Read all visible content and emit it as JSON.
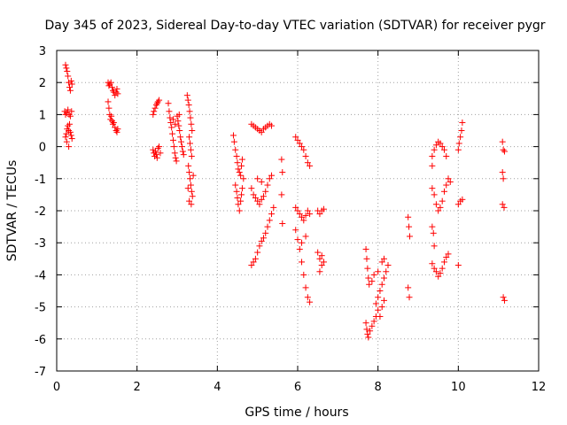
{
  "chart_data": {
    "type": "scatter",
    "title": "Day 345 of 2023, Sidereal Day-to-day VTEC variation (SDTVAR) for receiver pygr",
    "xlabel": "GPS time / hours",
    "ylabel": "SDTVAR / TECUs",
    "xlim": [
      0,
      12
    ],
    "ylim": [
      -7,
      3
    ],
    "xticks": [
      0,
      2,
      4,
      6,
      8,
      10,
      12
    ],
    "yticks": [
      -7,
      -6,
      -5,
      -4,
      -3,
      -2,
      -1,
      0,
      1,
      2,
      3
    ],
    "x_tick_labels": [
      "0",
      "2",
      "4",
      "6",
      "8",
      "10",
      "12"
    ],
    "y_tick_labels": [
      "-7",
      "-6",
      "-5",
      "-4",
      "-3",
      "-2",
      "-1",
      "0",
      "1",
      "2",
      "3"
    ],
    "grid": true,
    "marker": "+",
    "color": "#ff0000",
    "series": [
      {
        "name": "SDTVAR",
        "points": [
          [
            0.22,
            2.55
          ],
          [
            0.24,
            2.45
          ],
          [
            0.26,
            2.35
          ],
          [
            0.28,
            2.2
          ],
          [
            0.3,
            2.0
          ],
          [
            0.32,
            1.85
          ],
          [
            0.34,
            1.75
          ],
          [
            0.36,
            2.05
          ],
          [
            0.38,
            1.95
          ],
          [
            0.2,
            1.1
          ],
          [
            0.22,
            1.0
          ],
          [
            0.25,
            1.05
          ],
          [
            0.28,
            1.15
          ],
          [
            0.31,
            1.0
          ],
          [
            0.34,
            0.95
          ],
          [
            0.37,
            1.1
          ],
          [
            0.22,
            0.3
          ],
          [
            0.24,
            0.4
          ],
          [
            0.26,
            0.55
          ],
          [
            0.28,
            0.65
          ],
          [
            0.3,
            0.5
          ],
          [
            0.32,
            0.7
          ],
          [
            0.34,
            0.45
          ],
          [
            0.36,
            0.35
          ],
          [
            0.38,
            0.25
          ],
          [
            0.25,
            0.15
          ],
          [
            0.3,
            0.0
          ],
          [
            1.28,
            2.0
          ],
          [
            1.3,
            1.9
          ],
          [
            1.32,
            1.95
          ],
          [
            1.35,
            2.0
          ],
          [
            1.38,
            1.85
          ],
          [
            1.4,
            1.75
          ],
          [
            1.42,
            1.7
          ],
          [
            1.45,
            1.6
          ],
          [
            1.48,
            1.7
          ],
          [
            1.5,
            1.8
          ],
          [
            1.52,
            1.65
          ],
          [
            1.28,
            1.4
          ],
          [
            1.3,
            1.2
          ],
          [
            1.32,
            1.0
          ],
          [
            1.34,
            0.85
          ],
          [
            1.36,
            0.95
          ],
          [
            1.38,
            0.8
          ],
          [
            1.4,
            0.7
          ],
          [
            1.42,
            0.75
          ],
          [
            1.45,
            0.6
          ],
          [
            1.48,
            0.5
          ],
          [
            1.5,
            0.45
          ],
          [
            1.52,
            0.55
          ],
          [
            2.4,
            1.0
          ],
          [
            2.42,
            1.1
          ],
          [
            2.45,
            1.2
          ],
          [
            2.48,
            1.3
          ],
          [
            2.5,
            1.35
          ],
          [
            2.52,
            1.4
          ],
          [
            2.55,
            1.45
          ],
          [
            2.4,
            -0.1
          ],
          [
            2.42,
            -0.2
          ],
          [
            2.44,
            -0.3
          ],
          [
            2.46,
            -0.15
          ],
          [
            2.48,
            -0.25
          ],
          [
            2.5,
            -0.35
          ],
          [
            2.52,
            -0.05
          ],
          [
            2.55,
            0.0
          ],
          [
            2.58,
            -0.2
          ],
          [
            2.78,
            1.35
          ],
          [
            2.8,
            1.1
          ],
          [
            2.82,
            0.9
          ],
          [
            2.84,
            0.75
          ],
          [
            2.86,
            0.6
          ],
          [
            2.88,
            0.4
          ],
          [
            2.9,
            0.2
          ],
          [
            2.92,
            0.0
          ],
          [
            2.94,
            -0.2
          ],
          [
            2.96,
            -0.35
          ],
          [
            2.98,
            -0.45
          ],
          [
            3.0,
            0.95
          ],
          [
            3.02,
            0.8
          ],
          [
            3.04,
            0.65
          ],
          [
            3.06,
            0.5
          ],
          [
            3.08,
            0.3
          ],
          [
            3.1,
            0.15
          ],
          [
            3.12,
            0.0
          ],
          [
            3.14,
            -0.15
          ],
          [
            3.16,
            -0.25
          ],
          [
            2.9,
            0.85
          ],
          [
            2.95,
            0.7
          ],
          [
            3.05,
            1.0
          ],
          [
            3.25,
            1.6
          ],
          [
            3.27,
            1.45
          ],
          [
            3.29,
            1.3
          ],
          [
            3.31,
            1.1
          ],
          [
            3.33,
            0.9
          ],
          [
            3.35,
            0.7
          ],
          [
            3.37,
            0.5
          ],
          [
            3.3,
            0.3
          ],
          [
            3.32,
            0.1
          ],
          [
            3.34,
            -0.1
          ],
          [
            3.36,
            -0.3
          ],
          [
            3.28,
            -0.6
          ],
          [
            3.3,
            -0.8
          ],
          [
            3.32,
            -1.0
          ],
          [
            3.34,
            -1.2
          ],
          [
            3.36,
            -1.4
          ],
          [
            3.38,
            -1.55
          ],
          [
            3.3,
            -1.7
          ],
          [
            3.35,
            -1.8
          ],
          [
            3.27,
            -1.3
          ],
          [
            3.4,
            -0.9
          ],
          [
            4.4,
            0.35
          ],
          [
            4.42,
            0.15
          ],
          [
            4.45,
            -0.1
          ],
          [
            4.48,
            -0.3
          ],
          [
            4.5,
            -0.5
          ],
          [
            4.52,
            -0.7
          ],
          [
            4.55,
            -0.8
          ],
          [
            4.58,
            -0.9
          ],
          [
            4.6,
            -0.6
          ],
          [
            4.62,
            -0.4
          ],
          [
            4.65,
            -1.0
          ],
          [
            4.45,
            -1.2
          ],
          [
            4.48,
            -1.4
          ],
          [
            4.5,
            -1.6
          ],
          [
            4.52,
            -1.8
          ],
          [
            4.55,
            -2.0
          ],
          [
            4.58,
            -1.7
          ],
          [
            4.6,
            -1.5
          ],
          [
            4.62,
            -1.3
          ],
          [
            4.85,
            0.7
          ],
          [
            4.9,
            0.65
          ],
          [
            4.95,
            0.6
          ],
          [
            5.0,
            0.55
          ],
          [
            5.05,
            0.5
          ],
          [
            5.1,
            0.45
          ],
          [
            5.15,
            0.55
          ],
          [
            5.2,
            0.6
          ],
          [
            5.25,
            0.65
          ],
          [
            5.3,
            0.7
          ],
          [
            5.35,
            0.65
          ],
          [
            4.85,
            -1.3
          ],
          [
            4.9,
            -1.5
          ],
          [
            4.95,
            -1.6
          ],
          [
            5.0,
            -1.7
          ],
          [
            5.05,
            -1.8
          ],
          [
            5.1,
            -1.65
          ],
          [
            5.15,
            -1.55
          ],
          [
            5.2,
            -1.4
          ],
          [
            5.25,
            -1.2
          ],
          [
            5.3,
            -1.0
          ],
          [
            5.35,
            -0.9
          ],
          [
            5.0,
            -1.0
          ],
          [
            5.1,
            -1.1
          ],
          [
            4.85,
            -3.7
          ],
          [
            4.9,
            -3.6
          ],
          [
            4.95,
            -3.5
          ],
          [
            5.0,
            -3.3
          ],
          [
            5.05,
            -3.1
          ],
          [
            5.1,
            -2.95
          ],
          [
            5.15,
            -2.85
          ],
          [
            5.2,
            -2.7
          ],
          [
            5.25,
            -2.5
          ],
          [
            5.3,
            -2.3
          ],
          [
            5.35,
            -2.1
          ],
          [
            5.4,
            -1.9
          ],
          [
            5.6,
            -0.4
          ],
          [
            5.62,
            -0.8
          ],
          [
            5.6,
            -1.5
          ],
          [
            5.62,
            -2.4
          ],
          [
            5.95,
            0.3
          ],
          [
            6.0,
            0.2
          ],
          [
            6.05,
            0.1
          ],
          [
            6.1,
            0.0
          ],
          [
            6.15,
            -0.1
          ],
          [
            6.2,
            -0.3
          ],
          [
            6.25,
            -0.5
          ],
          [
            6.3,
            -0.6
          ],
          [
            5.95,
            -1.9
          ],
          [
            6.0,
            -2.0
          ],
          [
            6.05,
            -2.1
          ],
          [
            6.1,
            -2.2
          ],
          [
            6.15,
            -2.3
          ],
          [
            6.2,
            -2.15
          ],
          [
            6.25,
            -2.0
          ],
          [
            6.3,
            -2.1
          ],
          [
            5.95,
            -2.6
          ],
          [
            6.0,
            -2.9
          ],
          [
            6.05,
            -3.2
          ],
          [
            6.1,
            -3.6
          ],
          [
            6.15,
            -4.0
          ],
          [
            6.2,
            -4.4
          ],
          [
            6.25,
            -4.7
          ],
          [
            6.3,
            -4.85
          ],
          [
            6.1,
            -3.0
          ],
          [
            6.2,
            -2.8
          ],
          [
            6.5,
            -2.0
          ],
          [
            6.55,
            -2.1
          ],
          [
            6.6,
            -2.0
          ],
          [
            6.65,
            -1.95
          ],
          [
            6.5,
            -3.3
          ],
          [
            6.55,
            -3.5
          ],
          [
            6.6,
            -3.7
          ],
          [
            6.65,
            -3.6
          ],
          [
            6.55,
            -3.9
          ],
          [
            6.6,
            -3.4
          ],
          [
            7.7,
            -3.2
          ],
          [
            7.72,
            -3.5
          ],
          [
            7.74,
            -3.8
          ],
          [
            7.76,
            -4.1
          ],
          [
            7.78,
            -4.3
          ],
          [
            7.7,
            -5.5
          ],
          [
            7.72,
            -5.7
          ],
          [
            7.74,
            -5.85
          ],
          [
            7.76,
            -5.95
          ],
          [
            7.8,
            -5.75
          ],
          [
            7.85,
            -5.6
          ],
          [
            7.9,
            -5.45
          ],
          [
            7.95,
            -5.3
          ],
          [
            7.95,
            -4.9
          ],
          [
            8.0,
            -4.7
          ],
          [
            8.05,
            -4.5
          ],
          [
            8.1,
            -4.3
          ],
          [
            8.15,
            -4.1
          ],
          [
            8.2,
            -3.9
          ],
          [
            8.25,
            -3.7
          ],
          [
            8.1,
            -3.6
          ],
          [
            8.15,
            -3.5
          ],
          [
            8.0,
            -3.9
          ],
          [
            7.9,
            -4.0
          ],
          [
            7.85,
            -4.2
          ],
          [
            8.0,
            -5.1
          ],
          [
            8.05,
            -5.3
          ],
          [
            8.1,
            -5.0
          ],
          [
            8.15,
            -4.8
          ],
          [
            8.75,
            -2.2
          ],
          [
            8.77,
            -2.5
          ],
          [
            8.79,
            -2.8
          ],
          [
            8.75,
            -4.4
          ],
          [
            8.78,
            -4.7
          ],
          [
            9.35,
            -0.3
          ],
          [
            9.4,
            -0.1
          ],
          [
            9.45,
            0.05
          ],
          [
            9.5,
            0.15
          ],
          [
            9.55,
            0.1
          ],
          [
            9.6,
            0.0
          ],
          [
            9.65,
            -0.1
          ],
          [
            9.7,
            -0.3
          ],
          [
            9.35,
            -0.6
          ],
          [
            9.35,
            -1.3
          ],
          [
            9.4,
            -1.5
          ],
          [
            9.45,
            -1.8
          ],
          [
            9.5,
            -2.0
          ],
          [
            9.55,
            -1.9
          ],
          [
            9.6,
            -1.7
          ],
          [
            9.65,
            -1.4
          ],
          [
            9.7,
            -1.2
          ],
          [
            9.75,
            -1.0
          ],
          [
            9.8,
            -1.1
          ],
          [
            9.35,
            -2.5
          ],
          [
            9.38,
            -2.7
          ],
          [
            9.4,
            -3.1
          ],
          [
            9.35,
            -3.65
          ],
          [
            9.4,
            -3.8
          ],
          [
            9.45,
            -3.9
          ],
          [
            9.5,
            -4.05
          ],
          [
            9.55,
            -3.95
          ],
          [
            9.6,
            -3.8
          ],
          [
            9.65,
            -3.6
          ],
          [
            9.7,
            -3.45
          ],
          [
            9.75,
            -3.35
          ],
          [
            10.0,
            -0.1
          ],
          [
            10.02,
            0.1
          ],
          [
            10.05,
            0.3
          ],
          [
            10.08,
            0.5
          ],
          [
            10.1,
            0.75
          ],
          [
            10.0,
            -1.8
          ],
          [
            10.05,
            -1.7
          ],
          [
            10.1,
            -1.65
          ],
          [
            10.0,
            -3.7
          ],
          [
            11.1,
            0.15
          ],
          [
            11.12,
            -0.1
          ],
          [
            11.15,
            -0.15
          ],
          [
            11.1,
            -0.8
          ],
          [
            11.12,
            -1.0
          ],
          [
            11.1,
            -1.8
          ],
          [
            11.14,
            -1.9
          ],
          [
            11.12,
            -4.7
          ],
          [
            11.15,
            -4.8
          ]
        ]
      }
    ]
  }
}
